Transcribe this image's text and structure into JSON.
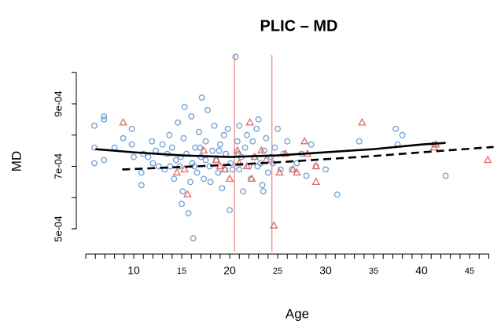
{
  "chart_data": {
    "type": "scatter",
    "title": "PLIC – MD",
    "xlabel": "Age",
    "ylabel": "MD",
    "xlim": [
      4.26,
      47.7
    ],
    "ylim": [
      0.000427,
      0.001056
    ],
    "xticks": [
      10,
      15,
      20,
      25,
      30,
      35,
      40,
      45
    ],
    "x_minor_ticks": [
      5,
      6,
      7,
      8,
      9,
      11,
      12,
      13,
      14,
      16,
      17,
      18,
      19,
      21,
      22,
      23,
      24,
      26,
      27,
      28,
      29,
      31,
      32,
      33,
      34,
      36,
      37,
      38,
      39,
      41,
      42,
      43,
      44,
      46,
      47
    ],
    "yticks": [
      {
        "value": 0.0005,
        "label": "5e-04"
      },
      {
        "value": 0.0007,
        "label": "7e-04"
      },
      {
        "value": 0.0009,
        "label": "9e-04"
      }
    ],
    "y_minor_ticks": [
      0.0006,
      0.0008,
      0.001
    ],
    "series": [
      {
        "color": "#6f9fd2",
        "marker": "circle",
        "x": [
          5.9,
          5.9,
          5.9,
          6.9,
          6.9,
          6.9,
          8.0,
          8.9,
          9.8,
          9.8,
          10.0,
          10.8,
          10.8,
          11.5,
          11.9,
          12.3,
          12.6,
          13.0,
          13.2,
          13.5,
          13.7,
          14.0,
          14.2,
          14.4,
          14.6,
          14.8,
          15.0,
          15.1,
          15.2,
          15.3,
          15.5,
          15.7,
          15.9,
          16.0,
          16.1,
          16.2,
          16.4,
          16.6,
          16.8,
          17.0,
          17.1,
          17.3,
          17.5,
          17.7,
          17.9,
          18.0,
          18.2,
          18.4,
          18.6,
          18.8,
          19.0,
          19.2,
          19.4,
          19.6,
          19.8,
          20.0,
          20.1,
          20.3,
          20.6,
          20.8,
          21.0,
          21.2,
          21.4,
          21.6,
          21.8,
          22.0,
          22.2,
          22.4,
          22.6,
          22.8,
          23.0,
          23.2,
          23.4,
          23.6,
          23.8,
          24.0,
          24.3,
          24.7,
          25.0,
          25.3,
          25.6,
          26.0,
          26.5,
          27.0,
          27.5,
          28.0,
          28.5,
          29.0,
          30.0,
          31.2,
          33.5,
          37.3,
          38.0,
          37.5,
          41.3,
          42.5,
          21.0,
          22.9,
          19.5,
          17.5,
          16.3,
          14.9,
          13.8,
          12.0,
          11.0,
          24.5,
          23.5,
          20.9,
          18.9,
          16.9
        ],
        "values": [
          0.00083,
          0.00076,
          0.00071,
          0.00085,
          0.00072,
          0.00086,
          0.00076,
          0.00079,
          0.00082,
          0.00077,
          0.00073,
          0.00068,
          0.00064,
          0.00073,
          0.00078,
          0.00075,
          0.0007,
          0.00077,
          0.00069,
          0.00074,
          0.0008,
          0.00076,
          0.00066,
          0.00072,
          0.00084,
          0.0007,
          0.00058,
          0.00062,
          0.00079,
          0.00089,
          0.00074,
          0.00055,
          0.00065,
          0.00086,
          0.00071,
          0.00047,
          0.00076,
          0.00068,
          0.00081,
          0.00073,
          0.00092,
          0.00066,
          0.00078,
          0.00088,
          0.0007,
          0.00065,
          0.00075,
          0.00083,
          0.00072,
          0.00068,
          0.00077,
          0.00063,
          0.0008,
          0.00074,
          0.00082,
          0.00056,
          0.00071,
          0.00069,
          0.00105,
          0.00078,
          0.00083,
          0.00073,
          0.00062,
          0.00076,
          0.0008,
          0.0007,
          0.00066,
          0.00078,
          0.00073,
          0.00082,
          0.00085,
          0.00071,
          0.00064,
          0.00075,
          0.00079,
          0.00068,
          0.00073,
          0.00076,
          0.00082,
          0.00069,
          0.00074,
          0.00078,
          0.00069,
          0.00071,
          0.00074,
          0.00067,
          0.00077,
          0.0007,
          0.00069,
          0.00061,
          0.00078,
          0.00082,
          0.0008,
          0.00077,
          0.00077,
          0.00067,
          0.00069,
          0.0007,
          0.00069,
          0.00072,
          0.0007,
          0.00073,
          0.0007,
          0.00071,
          0.00074,
          0.00071,
          0.00062,
          0.00074,
          0.00075,
          0.00076
        ]
      },
      {
        "color": "#e06a66",
        "marker": "triangle",
        "x": [
          8.9,
          15.3,
          15.6,
          17.3,
          18.6,
          19.5,
          20.0,
          20.8,
          21.8,
          22.1,
          22.3,
          22.6,
          23.3,
          23.8,
          24.6,
          25.2,
          25.8,
          26.6,
          27.0,
          27.8,
          28.1,
          29.0,
          29.0,
          33.8,
          41.3,
          41.5,
          46.9,
          19.0,
          14.5,
          21.0
        ],
        "values": [
          0.00084,
          0.00069,
          0.00061,
          0.00075,
          0.00072,
          0.00069,
          0.00066,
          0.00075,
          0.0007,
          0.00084,
          0.00066,
          0.00073,
          0.00075,
          0.00072,
          0.00051,
          0.00068,
          0.00074,
          0.00069,
          0.00068,
          0.00078,
          0.00074,
          0.0007,
          0.00065,
          0.00084,
          0.00076,
          0.00077,
          0.00072,
          0.0007,
          0.00068,
          0.00071
        ]
      }
    ],
    "fit_lines": [
      {
        "color": "#000000",
        "dash": false,
        "x": [
          6,
          10,
          15,
          20,
          25,
          30,
          35,
          40,
          42.5
        ],
        "values": [
          0.000755,
          0.000745,
          0.000735,
          0.00073,
          0.000735,
          0.000745,
          0.000755,
          0.00077,
          0.000775
        ]
      },
      {
        "color": "#000000",
        "dash": true,
        "x": [
          8.8,
          15,
          20,
          25,
          30,
          35,
          40,
          47.5
        ],
        "values": [
          0.00069,
          0.000698,
          0.000705,
          0.000713,
          0.000723,
          0.000733,
          0.000745,
          0.000762
        ]
      }
    ],
    "vlines": {
      "color": "#f08a84",
      "values": [
        20.5,
        24.4
      ]
    }
  }
}
